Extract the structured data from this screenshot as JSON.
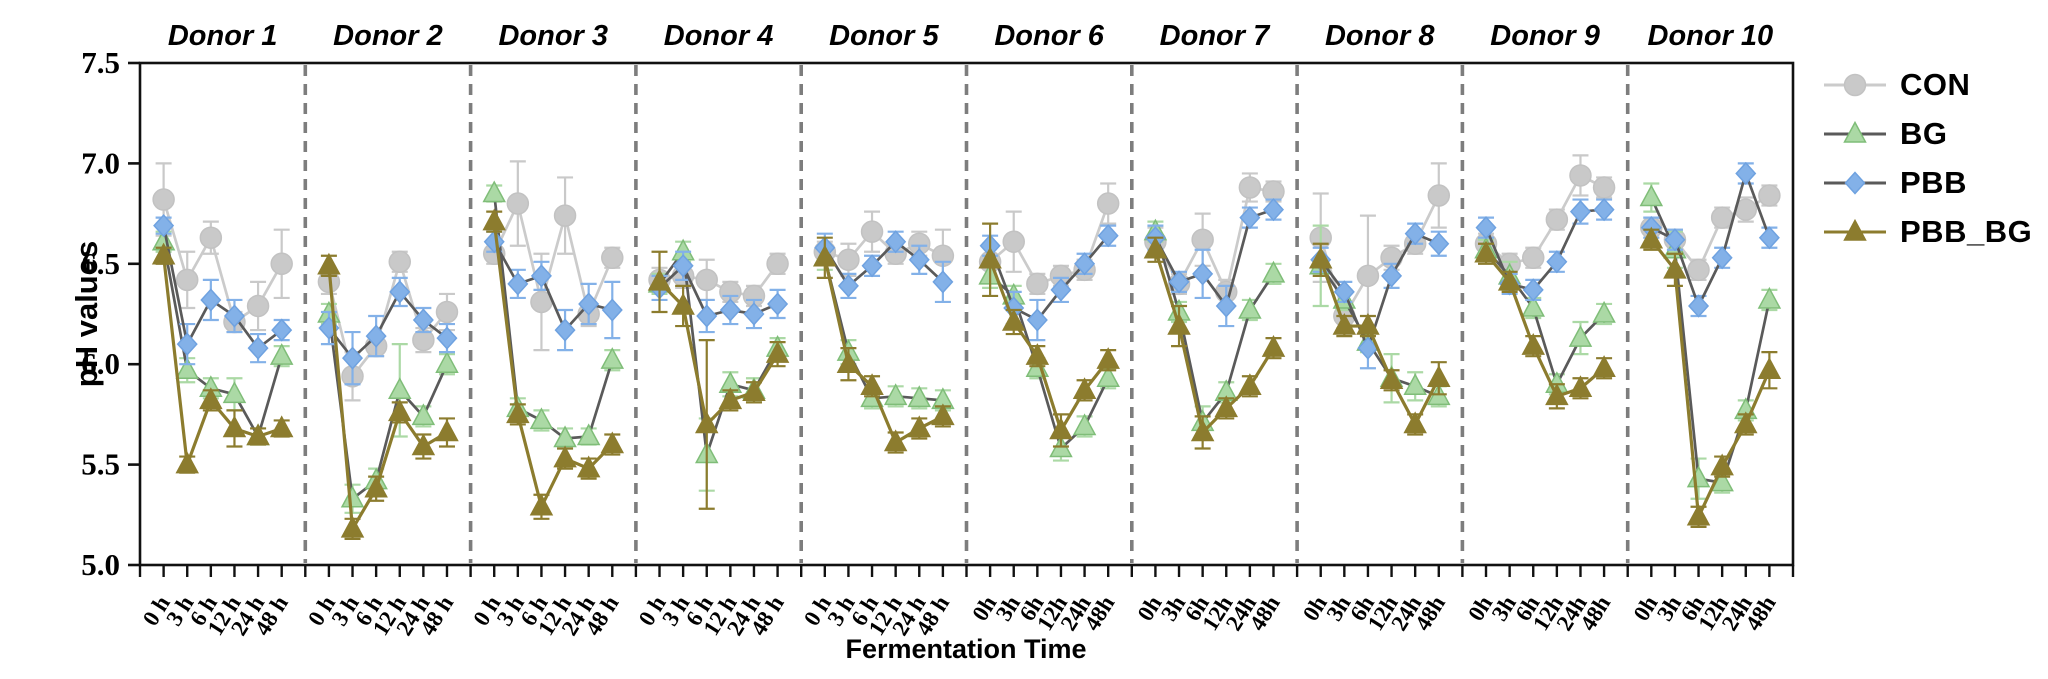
{
  "figure": {
    "y_axis_title": "pH values",
    "x_axis_title": "Fermentation Time"
  },
  "chart_data": {
    "type": "line",
    "title": "",
    "xlabel": "Fermentation Time",
    "ylabel": "pH values",
    "ylim": [
      5.0,
      7.5
    ],
    "yticks": [
      "5.0",
      "5.5",
      "6.0",
      "6.5",
      "7.0",
      "7.5"
    ],
    "grid": false,
    "legend_position": "top-right",
    "panel_separator_style": "dashed",
    "series_order": [
      "CON",
      "BG",
      "PBB",
      "PBB_BG"
    ],
    "series_styles": {
      "CON": {
        "marker": "circle",
        "fill": "#c9c9c9",
        "edge": "#c2c2c2",
        "line": "#cbcbcb",
        "err": "#c9c9c9"
      },
      "BG": {
        "marker": "triangle",
        "fill": "#abd9a5",
        "edge": "#7fbd78",
        "line": "#5a5a5a",
        "err": "#abd9a5"
      },
      "PBB": {
        "marker": "diamond",
        "fill": "#83b1e8",
        "edge": "#6fa2e0",
        "line": "#5a5a5a",
        "err": "#83b1e8"
      },
      "PBB_BG": {
        "marker": "triangle",
        "fill": "#8c7c2e",
        "edge": "#8c7c2e",
        "line": "#8c7c2e",
        "err": "#8c7c2e"
      }
    },
    "legend": [
      {
        "label": "CON",
        "series": "CON"
      },
      {
        "label": "BG",
        "series": "BG"
      },
      {
        "label": "PBB",
        "series": "PBB"
      },
      {
        "label": "PBB_BG",
        "series": "PBB_BG"
      }
    ],
    "donors": [
      {
        "label": "Donor 1",
        "categories": [
          "0 h",
          "3 h",
          "6 h",
          "12 h",
          "24 h",
          "48 h"
        ],
        "series": {
          "CON": {
            "values": [
              6.82,
              6.42,
              6.63,
              6.21,
              6.29,
              6.5
            ],
            "errors": [
              0.18,
              0.14,
              0.08,
              0.05,
              0.12,
              0.17
            ]
          },
          "BG": {
            "values": [
              6.61,
              5.97,
              5.88,
              5.85,
              5.64,
              6.04
            ],
            "errors": [
              0.05,
              0.06,
              0.05,
              0.08,
              0.04,
              0.05
            ]
          },
          "PBB": {
            "values": [
              6.69,
              6.1,
              6.32,
              6.24,
              6.08,
              6.17
            ],
            "errors": [
              0.04,
              0.1,
              0.1,
              0.08,
              0.07,
              0.05
            ]
          },
          "PBB_BG": {
            "values": [
              6.54,
              5.5,
              5.82,
              5.68,
              5.64,
              5.68
            ],
            "errors": [
              0.04,
              0.04,
              0.05,
              0.09,
              0.04,
              0.04
            ]
          }
        }
      },
      {
        "label": "Donor 2",
        "categories": [
          "0 h",
          "3 h",
          "6 h",
          "12 h",
          "24 h",
          "48 h"
        ],
        "series": {
          "CON": {
            "values": [
              6.41,
              5.94,
              6.09,
              6.51,
              6.12,
              6.26
            ],
            "errors": [
              0.06,
              0.12,
              0.05,
              0.05,
              0.06,
              0.09
            ]
          },
          "BG": {
            "values": [
              6.25,
              5.33,
              5.42,
              5.87,
              5.74,
              6.0
            ],
            "errors": [
              0.05,
              0.07,
              0.06,
              0.23,
              0.05,
              0.05
            ]
          },
          "PBB": {
            "values": [
              6.18,
              6.03,
              6.14,
              6.36,
              6.22,
              6.13
            ],
            "errors": [
              0.08,
              0.13,
              0.1,
              0.07,
              0.06,
              0.07
            ]
          },
          "PBB_BG": {
            "values": [
              6.49,
              5.18,
              5.38,
              5.76,
              5.59,
              5.66
            ],
            "errors": [
              0.05,
              0.05,
              0.06,
              0.05,
              0.06,
              0.07
            ]
          }
        }
      },
      {
        "label": "Donor 3",
        "categories": [
          "0 h",
          "3 h",
          "6 h",
          "12 h",
          "24 h",
          "48 h"
        ],
        "series": {
          "CON": {
            "values": [
              6.55,
              6.8,
              6.31,
              6.74,
              6.25,
              6.53
            ],
            "errors": [
              0.05,
              0.21,
              0.24,
              0.19,
              0.06,
              0.05
            ]
          },
          "BG": {
            "values": [
              6.85,
              5.78,
              5.72,
              5.63,
              5.64,
              6.02
            ],
            "errors": [
              0.04,
              0.05,
              0.05,
              0.05,
              0.04,
              0.05
            ]
          },
          "PBB": {
            "values": [
              6.61,
              6.4,
              6.44,
              6.17,
              6.3,
              6.27
            ],
            "errors": [
              0.05,
              0.07,
              0.07,
              0.1,
              0.1,
              0.14
            ]
          },
          "PBB_BG": {
            "values": [
              6.71,
              5.75,
              5.29,
              5.53,
              5.48,
              5.6
            ],
            "errors": [
              0.05,
              0.05,
              0.06,
              0.05,
              0.05,
              0.05
            ]
          }
        }
      },
      {
        "label": "Donor 4",
        "categories": [
          "0 h",
          "3 h",
          "6 h",
          "12 h",
          "24 h",
          "48 h"
        ],
        "series": {
          "CON": {
            "values": [
              6.42,
              6.44,
              6.42,
              6.36,
              6.34,
              6.5
            ],
            "errors": [
              0.06,
              0.06,
              0.1,
              0.05,
              0.05,
              0.05
            ]
          },
          "BG": {
            "values": [
              6.4,
              6.56,
              5.55,
              5.9,
              5.87,
              6.08
            ],
            "errors": [
              0.05,
              0.05,
              0.18,
              0.06,
              0.06,
              0.05
            ]
          },
          "PBB": {
            "values": [
              6.38,
              6.49,
              6.24,
              6.27,
              6.25,
              6.3
            ],
            "errors": [
              0.06,
              0.07,
              0.08,
              0.07,
              0.07,
              0.07
            ]
          },
          "PBB_BG": {
            "values": [
              6.41,
              6.29,
              5.7,
              5.82,
              5.86,
              6.05
            ],
            "errors": [
              0.15,
              0.1,
              0.42,
              0.05,
              0.05,
              0.06
            ]
          }
        }
      },
      {
        "label": "Donor 5",
        "categories": [
          "0 h",
          "3 h",
          "6 h",
          "12 h",
          "24 h",
          "48 h"
        ],
        "series": {
          "CON": {
            "values": [
              6.56,
              6.52,
              6.66,
              6.55,
              6.6,
              6.54
            ],
            "errors": [
              0.05,
              0.08,
              0.1,
              0.05,
              0.06,
              0.13
            ]
          },
          "BG": {
            "values": [
              6.53,
              6.06,
              5.83,
              5.84,
              5.83,
              5.82
            ],
            "errors": [
              0.06,
              0.06,
              0.05,
              0.05,
              0.05,
              0.05
            ]
          },
          "PBB": {
            "values": [
              6.58,
              6.39,
              6.49,
              6.61,
              6.52,
              6.41
            ],
            "errors": [
              0.07,
              0.06,
              0.05,
              0.05,
              0.07,
              0.1
            ]
          },
          "PBB_BG": {
            "values": [
              6.53,
              6.0,
              5.89,
              5.61,
              5.68,
              5.74
            ],
            "errors": [
              0.1,
              0.08,
              0.05,
              0.05,
              0.05,
              0.05
            ]
          }
        }
      },
      {
        "label": "Donor 6",
        "categories": [
          "0h",
          "3h",
          "6h",
          "12h",
          "24h",
          "48h"
        ],
        "series": {
          "CON": {
            "values": [
              6.51,
              6.61,
              6.4,
              6.44,
              6.47,
              6.8
            ],
            "errors": [
              0.09,
              0.15,
              0.05,
              0.05,
              0.05,
              0.1
            ]
          },
          "BG": {
            "values": [
              6.44,
              6.34,
              5.98,
              5.58,
              5.69,
              5.93
            ],
            "errors": [
              0.06,
              0.05,
              0.05,
              0.06,
              0.05,
              0.05
            ]
          },
          "PBB": {
            "values": [
              6.59,
              6.28,
              6.22,
              6.37,
              6.5,
              6.64
            ],
            "errors": [
              0.05,
              0.08,
              0.1,
              0.06,
              0.05,
              0.05
            ]
          },
          "PBB_BG": {
            "values": [
              6.52,
              6.21,
              6.04,
              5.67,
              5.87,
              6.02
            ],
            "errors": [
              0.18,
              0.06,
              0.05,
              0.08,
              0.05,
              0.05
            ]
          }
        }
      },
      {
        "label": "Donor 7",
        "categories": [
          "0h",
          "3h",
          "6h",
          "12h",
          "24h",
          "48h"
        ],
        "series": {
          "CON": {
            "values": [
              6.61,
              6.4,
              6.62,
              6.36,
              6.88,
              6.86
            ],
            "errors": [
              0.07,
              0.05,
              0.13,
              0.06,
              0.07,
              0.05
            ]
          },
          "BG": {
            "values": [
              6.66,
              6.26,
              5.71,
              5.86,
              6.27,
              6.45
            ],
            "errors": [
              0.05,
              0.05,
              0.08,
              0.05,
              0.05,
              0.05
            ]
          },
          "PBB": {
            "values": [
              6.63,
              6.41,
              6.45,
              6.29,
              6.73,
              6.77
            ],
            "errors": [
              0.06,
              0.05,
              0.12,
              0.1,
              0.05,
              0.05
            ]
          },
          "PBB_BG": {
            "values": [
              6.57,
              6.19,
              5.66,
              5.78,
              5.89,
              6.08
            ],
            "errors": [
              0.06,
              0.1,
              0.08,
              0.05,
              0.05,
              0.05
            ]
          }
        }
      },
      {
        "label": "Donor 8",
        "categories": [
          "0h",
          "3h",
          "6h",
          "12h",
          "24h",
          "48h"
        ],
        "series": {
          "CON": {
            "values": [
              6.63,
              6.24,
              6.44,
              6.53,
              6.6,
              6.84
            ],
            "errors": [
              0.22,
              0.06,
              0.3,
              0.06,
              0.05,
              0.16
            ]
          },
          "BG": {
            "values": [
              6.49,
              6.32,
              6.11,
              5.93,
              5.89,
              5.84
            ],
            "errors": [
              0.2,
              0.05,
              0.05,
              0.12,
              0.07,
              0.05
            ]
          },
          "PBB": {
            "values": [
              6.52,
              6.36,
              6.08,
              6.44,
              6.65,
              6.6
            ],
            "errors": [
              0.06,
              0.05,
              0.1,
              0.06,
              0.05,
              0.06
            ]
          },
          "PBB_BG": {
            "values": [
              6.52,
              6.19,
              6.19,
              5.92,
              5.7,
              5.93
            ],
            "errors": [
              0.08,
              0.05,
              0.05,
              0.05,
              0.05,
              0.08
            ]
          }
        }
      },
      {
        "label": "Donor 9",
        "categories": [
          "0h",
          "3h",
          "6h",
          "12h",
          "24h",
          "48h"
        ],
        "series": {
          "CON": {
            "values": [
              6.6,
              6.5,
              6.53,
              6.72,
              6.94,
              6.88
            ],
            "errors": [
              0.05,
              0.05,
              0.05,
              0.05,
              0.1,
              0.05
            ]
          },
          "BG": {
            "values": [
              6.57,
              6.44,
              6.28,
              5.9,
              6.13,
              6.25
            ],
            "errors": [
              0.05,
              0.07,
              0.05,
              0.05,
              0.08,
              0.05
            ]
          },
          "PBB": {
            "values": [
              6.68,
              6.4,
              6.37,
              6.51,
              6.76,
              6.77
            ],
            "errors": [
              0.05,
              0.05,
              0.05,
              0.05,
              0.06,
              0.05
            ]
          },
          "PBB_BG": {
            "values": [
              6.55,
              6.41,
              6.09,
              5.84,
              5.88,
              5.98
            ],
            "errors": [
              0.05,
              0.05,
              0.05,
              0.06,
              0.05,
              0.05
            ]
          }
        }
      },
      {
        "label": "Donor 10",
        "categories": [
          "0h",
          "3h",
          "6h",
          "12h",
          "24h",
          "48h"
        ],
        "series": {
          "CON": {
            "values": [
              6.68,
              6.62,
              6.47,
              6.73,
              6.77,
              6.84
            ],
            "errors": [
              0.05,
              0.05,
              0.05,
              0.05,
              0.06,
              0.05
            ]
          },
          "BG": {
            "values": [
              6.83,
              6.57,
              5.43,
              5.41,
              5.77,
              6.32
            ],
            "errors": [
              0.07,
              0.09,
              0.1,
              0.05,
              0.05,
              0.05
            ]
          },
          "PBB": {
            "values": [
              6.68,
              6.62,
              6.29,
              6.53,
              6.95,
              6.63
            ],
            "errors": [
              0.05,
              0.05,
              0.05,
              0.05,
              0.05,
              0.05
            ]
          },
          "PBB_BG": {
            "values": [
              6.62,
              6.47,
              5.24,
              5.49,
              5.7,
              5.97
            ],
            "errors": [
              0.05,
              0.08,
              0.05,
              0.05,
              0.05,
              0.09
            ]
          }
        }
      }
    ],
    "colors": {
      "axis": "#111111",
      "separator": "#7d7d7d",
      "text": "#000000"
    }
  }
}
